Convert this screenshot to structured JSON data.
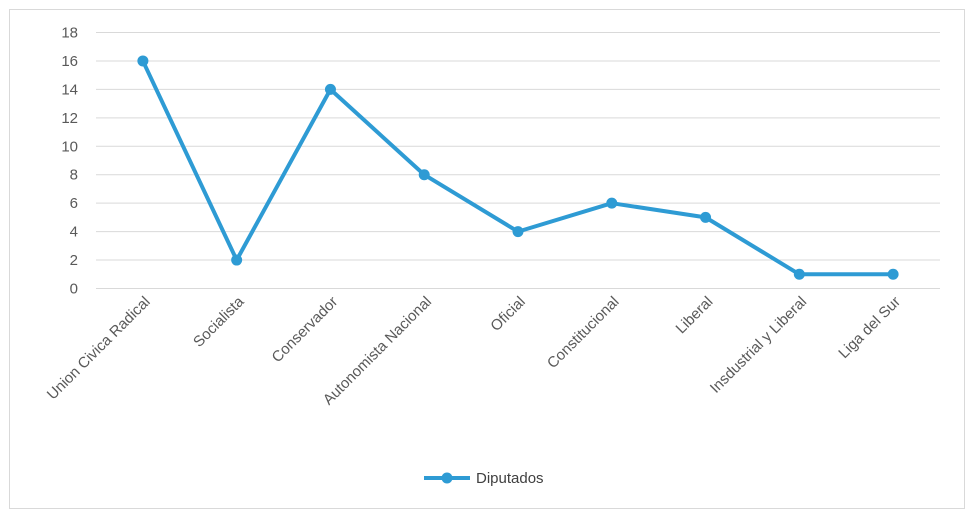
{
  "chart_data": {
    "type": "line",
    "title": "",
    "xlabel": "",
    "ylabel": "",
    "categories": [
      "Union Civica Radical",
      "Socialista",
      "Conservador",
      "Autonomista Nacional",
      "Oficial",
      "Constitucional",
      "Liberal",
      "Insdustrial y Liberal",
      "Liga del Sur"
    ],
    "series": [
      {
        "name": "Diputados",
        "values": [
          16,
          2,
          14,
          8,
          4,
          6,
          5,
          1,
          1
        ],
        "color": "#2E9BD4"
      }
    ],
    "ylim": [
      0,
      18
    ],
    "yticks": [
      0,
      2,
      4,
      6,
      8,
      10,
      12,
      14,
      16,
      18
    ],
    "grid": true,
    "gridColor": "#d9d9d9",
    "legend": "bottom"
  }
}
